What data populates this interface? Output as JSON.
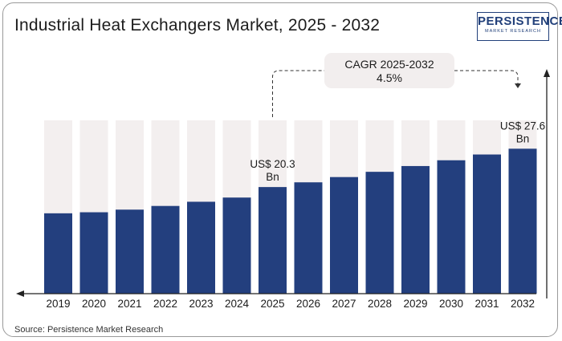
{
  "title": "Industrial Heat Exchangers Market, 2025 - 2032",
  "logo": {
    "main": "PERSISTENCE",
    "sub": "MARKET RESEARCH"
  },
  "source": "Source: Persistence Market Research",
  "cagr": {
    "label": "CAGR 2025-2032",
    "value": "4.5%"
  },
  "colors": {
    "bar": "#233f7e",
    "background_bar": "#f3efef",
    "axis": "#222222"
  },
  "chart_data": {
    "type": "bar",
    "categories": [
      "2019",
      "2020",
      "2021",
      "2022",
      "2023",
      "2024",
      "2025",
      "2026",
      "2027",
      "2028",
      "2029",
      "2030",
      "2031",
      "2032"
    ],
    "values": [
      15.3,
      15.5,
      16.0,
      16.7,
      17.5,
      18.3,
      20.3,
      21.2,
      22.2,
      23.2,
      24.3,
      25.4,
      26.5,
      27.6
    ],
    "ylim": [
      0,
      33
    ],
    "annotations": [
      {
        "category": "2025",
        "line1": "US$ 20.3",
        "line2": "Bn"
      },
      {
        "category": "2032",
        "line1": "US$ 27.6",
        "line2": "Bn"
      }
    ],
    "xlabel": "",
    "ylabel": "",
    "grid": false,
    "legend": "none"
  }
}
